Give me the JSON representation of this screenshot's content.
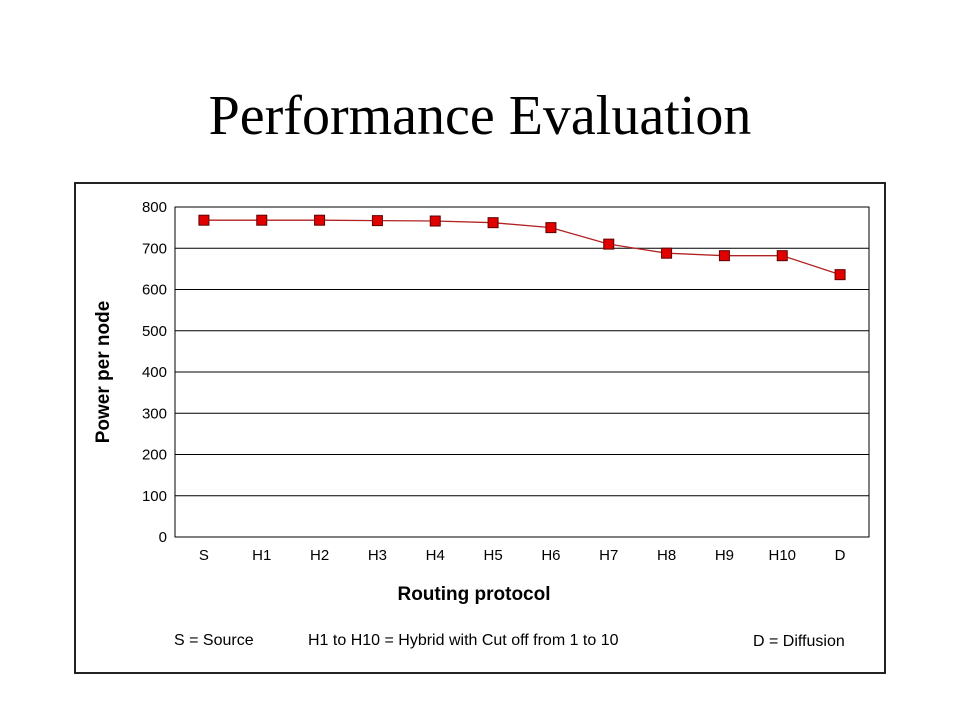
{
  "slide": {
    "title": "Performance Evaluation"
  },
  "chart_data": {
    "type": "line",
    "title": "",
    "xlabel": "Routing protocol",
    "ylabel": "Power per node",
    "categories": [
      "S",
      "H1",
      "H2",
      "H3",
      "H4",
      "H5",
      "H6",
      "H7",
      "H8",
      "H9",
      "H10",
      "D"
    ],
    "series": [
      {
        "values": [
          768,
          768,
          768,
          767,
          766,
          762,
          750,
          710,
          688,
          682,
          682,
          636
        ]
      }
    ],
    "ylim": [
      0,
      800
    ],
    "yticks": [
      0,
      100,
      200,
      300,
      400,
      500,
      600,
      700,
      800
    ],
    "grid": "horizontal",
    "legend_notes": [
      "S = Source",
      "H1 to H10 = Hybrid with Cut off from 1 to 10",
      "D = Diffusion"
    ],
    "colors": {
      "line": "#b22222",
      "marker_fill": "#e00000",
      "marker_stroke": "#600000",
      "grid": "#000000"
    }
  }
}
